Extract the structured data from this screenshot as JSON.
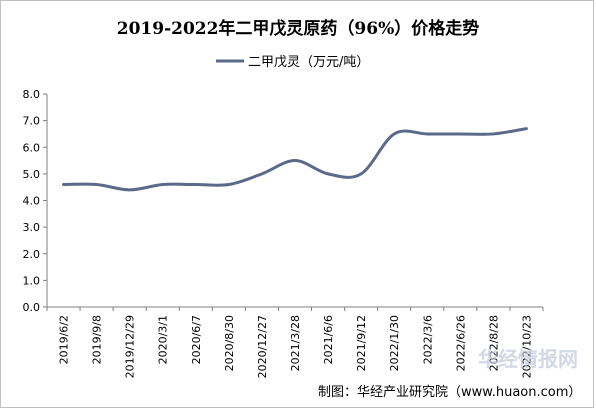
{
  "chart_data": {
    "type": "line",
    "title": "2019-2022年二甲戊灵原药（96%）价格走势",
    "xlabel": "",
    "ylabel": "",
    "categories": [
      "2019/6/2",
      "2019/9/8",
      "2019/12/29",
      "2020/3/1",
      "2020/6/7",
      "2020/8/30",
      "2020/12/27",
      "2021/3/28",
      "2021/6/6",
      "2021/9/12",
      "2022/1/30",
      "2022/3/6",
      "2022/6/26",
      "2022/8/28",
      "2022/10/23"
    ],
    "series": [
      {
        "name": "二甲戊灵（万元/吨）",
        "values": [
          4.6,
          4.6,
          4.4,
          4.6,
          4.6,
          4.6,
          5.0,
          5.5,
          5.0,
          5.0,
          6.5,
          6.5,
          6.5,
          6.5,
          6.7
        ]
      }
    ],
    "ylim": [
      0,
      8
    ],
    "yticks": [
      "0.0",
      "1.0",
      "2.0",
      "3.0",
      "4.0",
      "5.0",
      "6.0",
      "7.0",
      "8.0"
    ],
    "grid": false,
    "legend_position": "top-center",
    "line_color": "#5b6a8a"
  },
  "footer": {
    "source": "制图：华经产业研究院（www.huaon.com）",
    "watermark": "华经情报网"
  }
}
